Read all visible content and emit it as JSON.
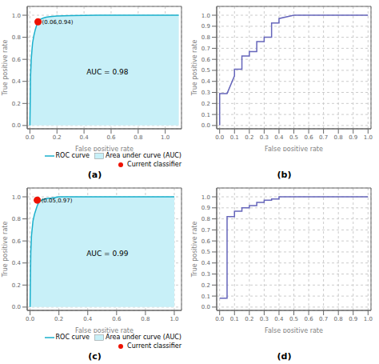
{
  "chart_data": [
    {
      "type": "line",
      "title": "(a)",
      "x": [
        0,
        0.005,
        0.01,
        0.015,
        0.02,
        0.03,
        0.04,
        0.05,
        0.06,
        0.07,
        0.08,
        0.1,
        0.12,
        0.15,
        0.2,
        0.3,
        0.5,
        0.7,
        1.0,
        1.1
      ],
      "series": [
        {
          "name": "ROC curve",
          "type": "line",
          "color": "#1ab0cc",
          "values": [
            0,
            0.45,
            0.6,
            0.68,
            0.75,
            0.82,
            0.87,
            0.91,
            0.94,
            0.955,
            0.965,
            0.975,
            0.982,
            0.988,
            0.993,
            0.997,
            1.0,
            1.0,
            1.0,
            1.0
          ]
        },
        {
          "name": "Area under curve (AUC)",
          "type": "area",
          "color": "#c8f0f8",
          "values": [
            0,
            0.45,
            0.6,
            0.68,
            0.75,
            0.82,
            0.87,
            0.91,
            0.94,
            0.955,
            0.965,
            0.975,
            0.982,
            0.988,
            0.993,
            0.997,
            1.0,
            1.0,
            1.0,
            1.0
          ]
        },
        {
          "name": "Current classifier",
          "type": "scatter",
          "color": "#ee1100",
          "x": [
            0.06
          ],
          "values": [
            0.94
          ]
        }
      ],
      "annotations": [
        {
          "text": "(0.06,0.94)",
          "x": 0.06,
          "y": 0.94
        },
        {
          "text": "AUC = 0.98"
        }
      ],
      "xlabel": "False positive rate",
      "ylabel": "True positive rate",
      "xlim": [
        -0.02,
        1.12
      ],
      "ylim": [
        -0.03,
        1.08
      ],
      "xticks": [
        {
          "value": 0,
          "label": "0.0"
        },
        0.2,
        0.4,
        0.6,
        0.8,
        {
          "value": 1.0,
          "label": "1.0"
        }
      ],
      "yticks": [
        {
          "value": 0,
          "label": "0.0"
        },
        0.2,
        0.4,
        0.6,
        0.8,
        {
          "value": 1.0,
          "label": "1.0"
        }
      ],
      "grid": true,
      "legend": "lower right"
    },
    {
      "type": "line",
      "title": "(b)",
      "x": [
        0,
        0.0,
        0.05,
        0.1,
        0.1,
        0.15,
        0.15,
        0.2,
        0.2,
        0.25,
        0.25,
        0.3,
        0.3,
        0.35,
        0.35,
        0.4,
        0.4,
        0.5,
        0.6,
        0.7,
        0.8,
        0.9,
        1.0
      ],
      "values": [
        0,
        0.29,
        0.29,
        0.45,
        0.51,
        0.51,
        0.63,
        0.63,
        0.67,
        0.67,
        0.76,
        0.76,
        0.8,
        0.8,
        0.93,
        0.93,
        0.97,
        1.0,
        1.0,
        1.0,
        1.0,
        1.0,
        1.0
      ],
      "color": "#6666bb",
      "xlabel": "False positive rate",
      "ylabel": "True positive rate",
      "xlim": [
        -0.02,
        1.02
      ],
      "ylim": [
        -0.03,
        1.08
      ],
      "xticks": [
        {
          "value": 0,
          "label": "0.0"
        },
        0.1,
        0.2,
        0.3,
        0.4,
        0.5,
        0.6,
        0.7,
        0.8,
        0.9,
        {
          "value": 1.0,
          "label": "1.0"
        }
      ],
      "yticks": [
        {
          "value": 0,
          "label": "0.0"
        },
        0.1,
        0.2,
        0.3,
        0.4,
        0.5,
        0.6,
        0.7,
        0.8,
        0.9,
        {
          "value": 1.0,
          "label": "1.0"
        }
      ],
      "grid": true
    },
    {
      "type": "line",
      "title": "(c)",
      "x": [
        0,
        0.005,
        0.01,
        0.02,
        0.03,
        0.04,
        0.05,
        0.06,
        0.08,
        0.1,
        0.12,
        0.15,
        0.2,
        0.5,
        1.0
      ],
      "series": [
        {
          "name": "ROC curve",
          "type": "line",
          "color": "#1ab0cc",
          "values": [
            0,
            0.5,
            0.65,
            0.78,
            0.84,
            0.88,
            0.92,
            0.95,
            0.97,
            0.98,
            0.985,
            0.99,
            1.0,
            1.0,
            1.0
          ]
        },
        {
          "name": "Area under curve (AUC)",
          "type": "area",
          "color": "#c8f0f8",
          "values": [
            0,
            0.5,
            0.65,
            0.78,
            0.84,
            0.88,
            0.92,
            0.95,
            0.97,
            0.98,
            0.985,
            0.99,
            1.0,
            1.0,
            1.0
          ]
        },
        {
          "name": "Current classifier",
          "type": "scatter",
          "color": "#ee1100",
          "x": [
            0.05
          ],
          "values": [
            0.97
          ]
        }
      ],
      "annotations": [
        {
          "text": "(0.05,0.97)",
          "x": 0.05,
          "y": 0.97
        },
        {
          "text": "AUC = 0.99"
        }
      ],
      "xlabel": "False positive rate",
      "ylabel": "True positive rate",
      "xlim": [
        -0.02,
        1.05
      ],
      "ylim": [
        -0.03,
        1.08
      ],
      "xticks": [
        {
          "value": 0,
          "label": "0.0"
        },
        0.2,
        0.4,
        0.6,
        0.8,
        {
          "value": 1.0,
          "label": "1.0"
        }
      ],
      "yticks": [
        {
          "value": 0,
          "label": "0.0"
        },
        0.2,
        0.4,
        0.6,
        0.8,
        {
          "value": 1.0,
          "label": "1.0"
        }
      ],
      "grid": true,
      "legend": "lower right"
    },
    {
      "type": "line",
      "title": "(d)",
      "x": [
        0,
        0.05,
        0.05,
        0.1,
        0.1,
        0.15,
        0.15,
        0.2,
        0.2,
        0.25,
        0.25,
        0.3,
        0.3,
        0.35,
        0.35,
        0.4,
        0.4,
        0.5,
        0.6,
        0.7,
        0.8,
        0.9,
        1.0
      ],
      "values": [
        0.08,
        0.08,
        0.82,
        0.82,
        0.87,
        0.87,
        0.9,
        0.9,
        0.92,
        0.92,
        0.95,
        0.95,
        0.97,
        0.97,
        0.98,
        0.98,
        1.0,
        1.0,
        1.0,
        1.0,
        1.0,
        1.0,
        1.0
      ],
      "color": "#6666bb",
      "xlabel": "False positive rate",
      "ylabel": "True positive rate",
      "xlim": [
        -0.02,
        1.02
      ],
      "ylim": [
        -0.03,
        1.08
      ],
      "xticks": [
        {
          "value": 0,
          "label": "0.0"
        },
        0.1,
        0.2,
        0.3,
        0.4,
        0.5,
        0.6,
        0.7,
        0.8,
        0.9,
        {
          "value": 1.0,
          "label": "1.0"
        }
      ],
      "yticks": [
        {
          "value": 0,
          "label": "0.0"
        },
        0.1,
        0.2,
        0.3,
        0.4,
        0.5,
        0.6,
        0.7,
        0.8,
        0.9,
        {
          "value": 1.0,
          "label": "1.0"
        }
      ],
      "grid": true
    }
  ]
}
